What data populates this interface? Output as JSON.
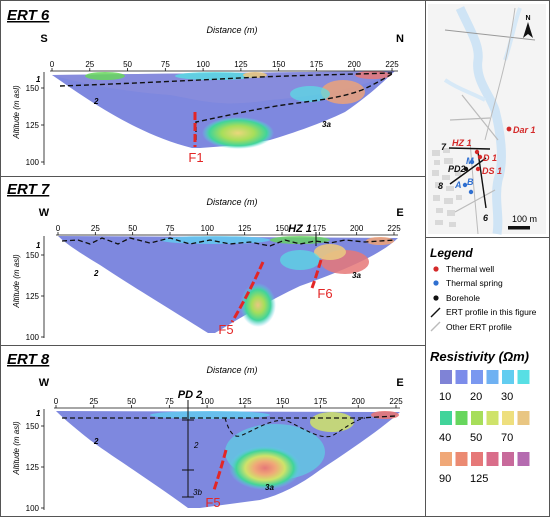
{
  "panels": [
    {
      "id": "ert6",
      "title": "ERT 6",
      "left_dir": "S",
      "right_dir": "N",
      "xlabel": "Distance (m)",
      "ylabel": "Altitude (m asl)",
      "xticks": [
        "0",
        "25",
        "50",
        "75",
        "100",
        "125",
        "150",
        "175",
        "200",
        "225"
      ],
      "yticks": [
        "150",
        "125",
        "100"
      ],
      "unit_labels": [
        "1",
        "2",
        "3a"
      ],
      "faults": [
        "F1"
      ],
      "borehole": "",
      "borehole_units": []
    },
    {
      "id": "ert7",
      "title": "ERT 7",
      "left_dir": "W",
      "right_dir": "E",
      "xlabel": "Distance (m)",
      "ylabel": "Altitude (m asl)",
      "xticks": [
        "0",
        "25",
        "50",
        "75",
        "100",
        "125",
        "150",
        "175",
        "200",
        "225"
      ],
      "yticks": [
        "150",
        "125",
        "100"
      ],
      "unit_labels": [
        "1",
        "2",
        "3a"
      ],
      "faults": [
        "F5",
        "F6"
      ],
      "borehole": "HZ 1",
      "borehole_units": []
    },
    {
      "id": "ert8",
      "title": "ERT 8",
      "left_dir": "W",
      "right_dir": "E",
      "xlabel": "Distance (m)",
      "ylabel": "Altitude (m asl)",
      "xticks": [
        "0",
        "25",
        "50",
        "75",
        "100",
        "125",
        "150",
        "175",
        "200",
        "225"
      ],
      "yticks": [
        "150",
        "125",
        "100"
      ],
      "unit_labels": [
        "1",
        "2",
        "3a"
      ],
      "faults": [
        "F5"
      ],
      "borehole": "PD 2",
      "borehole_units": [
        "2",
        "3b"
      ]
    }
  ],
  "map": {
    "north": "N",
    "scale_label": "100 m",
    "labels": [
      {
        "text": "Dar 1",
        "color": "#d42a2a"
      },
      {
        "text": "HZ 1",
        "color": "#d42a2a"
      },
      {
        "text": "D 1",
        "color": "#d42a2a"
      },
      {
        "text": "DS 1",
        "color": "#d42a2a"
      },
      {
        "text": "M",
        "color": "#2f6fd0"
      },
      {
        "text": "A",
        "color": "#2f6fd0"
      },
      {
        "text": "B",
        "color": "#2f6fd0"
      },
      {
        "text": "PD2",
        "color": "#111111"
      },
      {
        "text": "7",
        "color": "#111111"
      },
      {
        "text": "8",
        "color": "#111111"
      },
      {
        "text": "6",
        "color": "#111111"
      }
    ]
  },
  "legend": {
    "title": "Legend",
    "items": [
      {
        "label": "Thermal well",
        "symbol": "red-dot",
        "color": "#d42a2a"
      },
      {
        "label": "Thermal spring",
        "symbol": "blue-dot",
        "color": "#2f6fd0"
      },
      {
        "label": "Borehole",
        "symbol": "black-dot",
        "color": "#111111"
      },
      {
        "label": "ERT profile in this figure",
        "symbol": "black-line",
        "color": "#111111"
      },
      {
        "label": "Other ERT profile",
        "symbol": "gray-line",
        "color": "#bbbbbb"
      }
    ]
  },
  "resistivity": {
    "title": "Resistivity (Ωm)",
    "colors": [
      "#7f83d6",
      "#7c8cea",
      "#7a98f0",
      "#6fb1f2",
      "#62cdf0",
      "#58dfe4",
      "#41d49a",
      "#67d65d",
      "#a7de5a",
      "#cfe36a",
      "#eedf7e",
      "#e9c682",
      "#f0a878",
      "#eb8a72",
      "#e67878",
      "#d96d8a",
      "#c86a9b",
      "#b56bb0"
    ],
    "row_labels": [
      [
        "10",
        "20",
        "30"
      ],
      [
        "40",
        "50",
        "70"
      ],
      [
        "90",
        "125"
      ]
    ]
  }
}
